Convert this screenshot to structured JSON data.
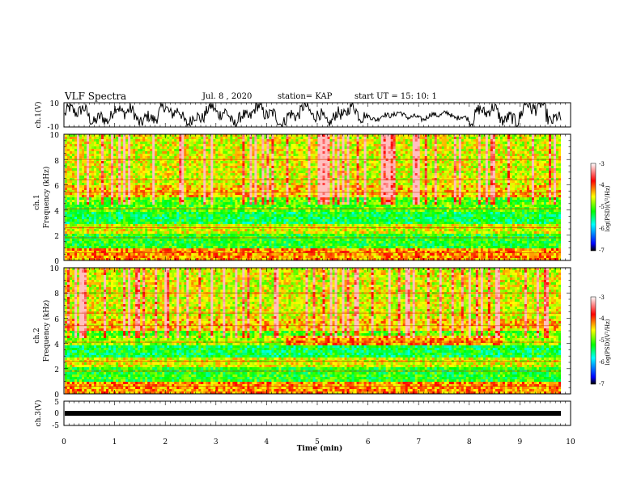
{
  "header": {
    "title": "VLF Spectra",
    "date": "Jul. 8 , 2020",
    "station": "station= KAP",
    "start": "start UT =  15: 10: 1"
  },
  "colors": {
    "trace": "#000000",
    "background": "#ffffff"
  },
  "chart_data": [
    {
      "type": "line",
      "panel": "ch1_waveform",
      "ylabel": "ch.1(V)",
      "yticks": [
        "10",
        "-10"
      ],
      "ylim": [
        -10,
        10
      ],
      "xlim": [
        0,
        10
      ],
      "note": "noisy waveform oscillating roughly between -10 and 10 V across 0-9.8 min"
    },
    {
      "type": "heatmap",
      "panel": "ch1_spectrogram",
      "ylabel_line1": "ch.1",
      "ylabel_line2": "Frequency (kHz)",
      "yticks": [
        "0",
        "2",
        "4",
        "6",
        "8",
        "10"
      ],
      "ylim": [
        0,
        10
      ],
      "xlim": [
        0,
        10
      ],
      "colorbar": {
        "label": "log(PSD)(V²/Hz)",
        "ticks": [
          "-3",
          "-4",
          "-5",
          "-6",
          "-7"
        ],
        "range": [
          -7,
          -3
        ],
        "colors": [
          "#000000",
          "#0000ff",
          "#00ffff",
          "#00ff00",
          "#ffff00",
          "#ff0000",
          "#ffffff"
        ]
      }
    },
    {
      "type": "heatmap",
      "panel": "ch2_spectrogram",
      "ylabel_line1": "ch.2",
      "ylabel_line2": "Frequency (kHz)",
      "yticks": [
        "0",
        "2",
        "4",
        "6",
        "8",
        "10"
      ],
      "ylim": [
        0,
        10
      ],
      "xlim": [
        0,
        10
      ],
      "colorbar": {
        "label": "log(PSD)(V²/Hz)",
        "ticks": [
          "-3",
          "-4",
          "-5",
          "-6",
          "-7"
        ],
        "range": [
          -7,
          -3
        ],
        "colors": [
          "#000000",
          "#0000ff",
          "#00ffff",
          "#00ff00",
          "#ffff00",
          "#ff0000",
          "#ffffff"
        ]
      }
    },
    {
      "type": "line",
      "panel": "ch3_waveform",
      "ylabel": "ch.3(V)",
      "yticks": [
        "5",
        "0",
        "-5"
      ],
      "ylim": [
        -5,
        5
      ],
      "xlim": [
        0,
        10
      ],
      "note": "flat thick trace near -1 V"
    }
  ],
  "xaxis": {
    "label": "Time (min)",
    "ticks": [
      "0",
      "1",
      "2",
      "3",
      "4",
      "5",
      "6",
      "7",
      "8",
      "9",
      "10"
    ]
  }
}
